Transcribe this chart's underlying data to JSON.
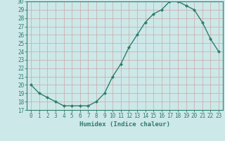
{
  "title": "",
  "xlabel": "Humidex (Indice chaleur)",
  "ylabel": "",
  "x": [
    0,
    1,
    2,
    3,
    4,
    5,
    6,
    7,
    8,
    9,
    10,
    11,
    12,
    13,
    14,
    15,
    16,
    17,
    18,
    19,
    20,
    21,
    22,
    23
  ],
  "y": [
    20,
    19,
    18.5,
    18,
    17.5,
    17.5,
    17.5,
    17.5,
    18,
    19,
    21,
    22.5,
    24.5,
    26,
    27.5,
    28.5,
    29,
    30,
    30,
    29.5,
    29,
    27.5,
    25.5,
    24
  ],
  "line_color": "#2e7d6e",
  "marker": "D",
  "marker_size": 2.0,
  "bg_color": "#cde8e8",
  "grid_color": "#b0d0d0",
  "ylim": [
    17,
    30
  ],
  "xlim": [
    -0.5,
    23.5
  ],
  "yticks": [
    17,
    18,
    19,
    20,
    21,
    22,
    23,
    24,
    25,
    26,
    27,
    28,
    29,
    30
  ],
  "xticks": [
    0,
    1,
    2,
    3,
    4,
    5,
    6,
    7,
    8,
    9,
    10,
    11,
    12,
    13,
    14,
    15,
    16,
    17,
    18,
    19,
    20,
    21,
    22,
    23
  ],
  "tick_labelsize": 5.5,
  "xlabel_fontsize": 6.5,
  "line_width": 1.0
}
